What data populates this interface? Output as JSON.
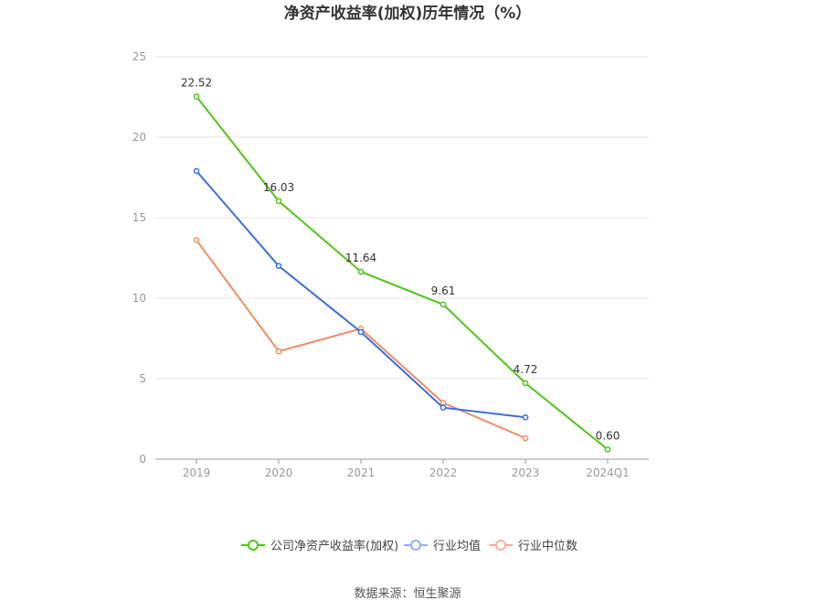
{
  "chart_data": {
    "type": "line",
    "title": "净资产收益率(加权)历年情况（%）",
    "categories": [
      "2019",
      "2020",
      "2021",
      "2022",
      "2023",
      "2024Q1"
    ],
    "ylim": [
      0,
      25
    ],
    "yticks": [
      0,
      5,
      10,
      15,
      20,
      25
    ],
    "grid": true,
    "legend_position": "bottom",
    "series": [
      {
        "name": "公司净资产收益率(加权)",
        "color": "#52c41a",
        "values": [
          22.52,
          16.03,
          11.64,
          9.61,
          4.72,
          0.6
        ],
        "labels": [
          "22.52",
          "16.03",
          "11.64",
          "9.61",
          "4.72",
          "0.60"
        ]
      },
      {
        "name": "行业均值",
        "color": "#3b6fd8",
        "values": [
          17.9,
          12.0,
          7.9,
          3.2,
          2.6,
          null
        ]
      },
      {
        "name": "行业中位数",
        "color": "#f08c64",
        "values": [
          13.6,
          6.7,
          8.1,
          3.5,
          1.3,
          null
        ]
      }
    ]
  },
  "source": "数据来源：恒生聚源"
}
